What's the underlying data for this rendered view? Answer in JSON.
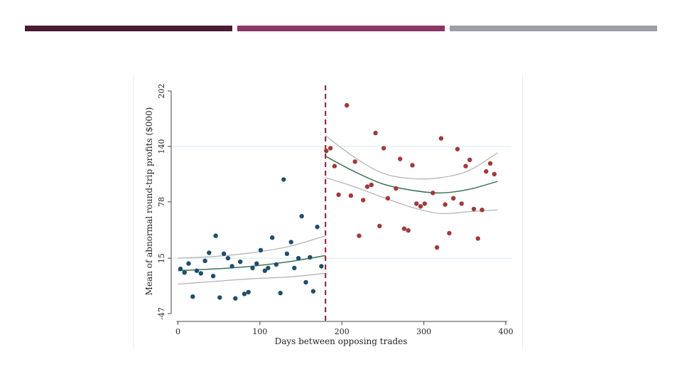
{
  "header_bars": {
    "colors": [
      "#4a1a37",
      "#8a3566",
      "#9aa0a6"
    ]
  },
  "chart_data": {
    "type": "scatter",
    "title": "",
    "xlabel": "Days between opposing trades",
    "ylabel": "Mean of abnormal round-trip profits ($000)",
    "xlim": [
      -5,
      405
    ],
    "ylim": [
      -47,
      202
    ],
    "x_ticks": [
      0,
      100,
      200,
      300,
      400
    ],
    "x_tick_labels": [
      "0",
      "100",
      "200",
      "300",
      "400"
    ],
    "y_ticks": [
      -47,
      15,
      78,
      140,
      202
    ],
    "y_tick_labels": [
      "-47",
      "15",
      "78",
      "140",
      "202"
    ],
    "grid": "horizontal at 15 and 140",
    "cutoff_x": 180,
    "colors": {
      "before": "#1f4e6b",
      "after": "#a03a3a",
      "fit": "#2e6b4a",
      "band": "#b0b0b0",
      "cutoff": "#8b1a2e",
      "grid": "#d4e6ee"
    },
    "series": [
      {
        "points": [
          [
            3,
            3
          ],
          [
            8,
            -1
          ],
          [
            13,
            9
          ],
          [
            18,
            -28
          ],
          [
            23,
            1
          ],
          [
            28,
            -2
          ],
          [
            33,
            12
          ],
          [
            38,
            21
          ],
          [
            43,
            -5
          ],
          [
            46,
            40
          ],
          [
            51,
            -29
          ],
          [
            56,
            20
          ],
          [
            61,
            15
          ],
          [
            66,
            6
          ],
          [
            70,
            -30
          ],
          [
            76,
            11
          ],
          [
            81,
            -25
          ],
          [
            86,
            -23
          ],
          [
            91,
            4
          ],
          [
            96,
            9
          ],
          [
            101,
            24
          ],
          [
            106,
            1
          ],
          [
            110,
            4
          ],
          [
            115,
            38
          ],
          [
            120,
            8
          ],
          [
            125,
            -24
          ],
          [
            129,
            103
          ],
          [
            133,
            20
          ],
          [
            138,
            33
          ],
          [
            142,
            4
          ],
          [
            147,
            15
          ],
          [
            151,
            62
          ],
          [
            156,
            -12
          ],
          [
            161,
            16
          ],
          [
            165,
            -22
          ],
          [
            170,
            50
          ],
          [
            175,
            6
          ]
        ]
      },
      {
        "points": [
          [
            181,
            135
          ],
          [
            186,
            138
          ],
          [
            191,
            118
          ],
          [
            196,
            86
          ],
          [
            206,
            186
          ],
          [
            211,
            85
          ],
          [
            216,
            123
          ],
          [
            221,
            40
          ],
          [
            226,
            80
          ],
          [
            231,
            95
          ],
          [
            236,
            97
          ],
          [
            241,
            155
          ],
          [
            246,
            51
          ],
          [
            251,
            138
          ],
          [
            256,
            82
          ],
          [
            266,
            93
          ],
          [
            271,
            126
          ],
          [
            276,
            48
          ],
          [
            281,
            46
          ],
          [
            286,
            119
          ],
          [
            291,
            76
          ],
          [
            296,
            73
          ],
          [
            301,
            76
          ],
          [
            311,
            88
          ],
          [
            316,
            27
          ],
          [
            321,
            149
          ],
          [
            326,
            75
          ],
          [
            331,
            43
          ],
          [
            336,
            82
          ],
          [
            341,
            137
          ],
          [
            346,
            76
          ],
          [
            351,
            118
          ],
          [
            356,
            125
          ],
          [
            361,
            70
          ],
          [
            366,
            37
          ],
          [
            371,
            69
          ],
          [
            376,
            112
          ],
          [
            381,
            121
          ],
          [
            386,
            109
          ]
        ]
      }
    ],
    "fit_lines": [
      {
        "x": [
          0,
          45,
          90,
          135,
          180
        ],
        "y": [
          1,
          3,
          6,
          11,
          18
        ],
        "lower": [
          -14,
          -11,
          -8,
          -6,
          -2
        ],
        "upper": [
          15,
          17,
          21,
          28,
          40
        ]
      },
      {
        "x": [
          180,
          215,
          250,
          285,
          320,
          355,
          390
        ],
        "y": [
          129,
          112,
          98,
          91,
          88,
          92,
          101
        ],
        "lower": [
          105,
          95,
          83,
          72,
          65,
          67,
          69
        ],
        "upper": [
          152,
          128,
          110,
          104,
          105,
          113,
          133
        ]
      }
    ]
  }
}
